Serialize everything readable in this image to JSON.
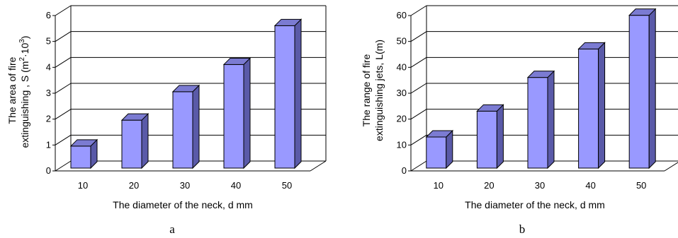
{
  "figure": {
    "charts": [
      {
        "panel_label": "a",
        "xlabel": "The diameter of the neck, d mm",
        "ylabel_line1": "The area of fire",
        "ylabel_line2_prefix": "extinguishing  , S (m",
        "ylabel_exp1": "2",
        "ylabel_mid": "·10",
        "ylabel_exp2": "3",
        "ylabel_suffix": ")",
        "ytick_labels": [
          "0",
          "1",
          "2",
          "3",
          "4",
          "5",
          "6"
        ]
      },
      {
        "panel_label": "b",
        "xlabel": "The diameter of the neck, d mm",
        "ylabel_line1": "The range of fire",
        "ylabel_line2": "extinguishing jets, L(m)",
        "ytick_labels": [
          "0",
          "10",
          "20",
          "30",
          "40",
          "50",
          "60"
        ]
      }
    ]
  },
  "colors": {
    "bar_front": "#9999ff",
    "bar_side": "#5a5aa8",
    "bar_top": "#7b7bd2",
    "bar_edge": "#000000",
    "grid": "#000000"
  },
  "chart_data": [
    {
      "type": "bar",
      "categories": [
        "10",
        "20",
        "30",
        "40",
        "50"
      ],
      "values": [
        0.85,
        1.85,
        2.95,
        4.0,
        5.5
      ],
      "xlabel": "The diameter of the neck, d mm",
      "ylabel": "The area of fire extinguishing , S (m2·103)",
      "ylim": [
        0,
        6
      ],
      "grid": true,
      "style": "3d"
    },
    {
      "type": "bar",
      "categories": [
        "10",
        "20",
        "30",
        "40",
        "50"
      ],
      "values": [
        12,
        22,
        35,
        46,
        59
      ],
      "xlabel": "The diameter of the neck, d mm",
      "ylabel": "The range of fire extinguishing jets, L(m)",
      "ylim": [
        0,
        60
      ],
      "grid": true,
      "style": "3d"
    }
  ]
}
